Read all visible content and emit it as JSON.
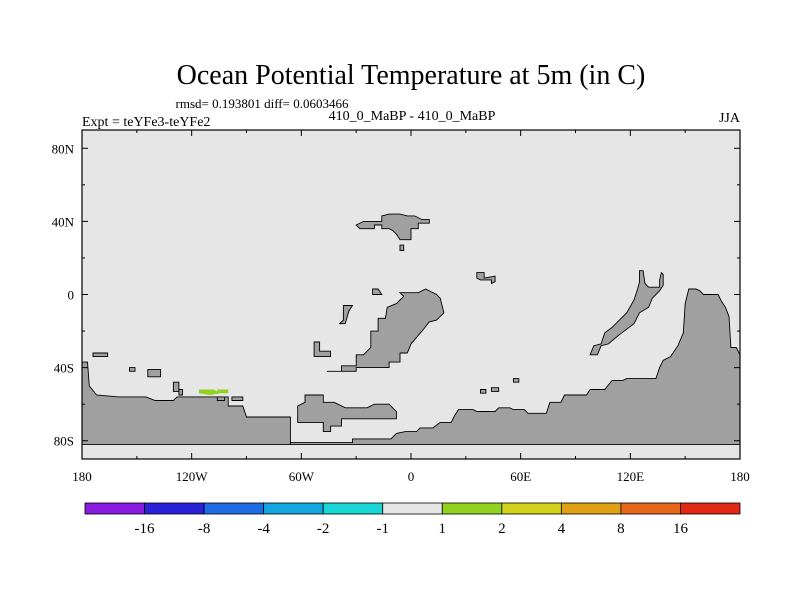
{
  "title": "Ocean Potential Temperature at 5m (in C)",
  "stats": "rmsd= 0.193801 diff= 0.0603466",
  "experiment": "Expt = teYFe3-teYFe2",
  "case": "410_0_MaBP - 410_0_MaBP",
  "season": "JJA",
  "colors": {
    "land": "#a0a0a0",
    "ocean_neutral": "#e6e6e6",
    "anomaly_patch": "#8fd21f"
  },
  "map": {
    "lon_range": [
      -180,
      180
    ],
    "lat_range": [
      -90,
      90
    ],
    "x_ticks": [
      {
        "lon": -180,
        "label": "180"
      },
      {
        "lon": -120,
        "label": "120W"
      },
      {
        "lon": -60,
        "label": "60W"
      },
      {
        "lon": 0,
        "label": "0"
      },
      {
        "lon": 60,
        "label": "60E"
      },
      {
        "lon": 120,
        "label": "120E"
      },
      {
        "lon": 180,
        "label": "180"
      }
    ],
    "y_ticks": [
      {
        "lat": 80,
        "label": "80N"
      },
      {
        "lat": 40,
        "label": "40N"
      },
      {
        "lat": 0,
        "label": "0"
      },
      {
        "lat": -40,
        "label": "40S"
      },
      {
        "lat": -80,
        "label": "80S"
      }
    ],
    "land_polygons": [
      [
        [
          -180,
          -37
        ],
        [
          -177,
          -37
        ],
        [
          -176,
          -50
        ],
        [
          -172,
          -55
        ],
        [
          -160,
          -56
        ],
        [
          -145,
          -56
        ],
        [
          -140,
          -58
        ],
        [
          -130,
          -58
        ],
        [
          -128,
          -56
        ],
        [
          -100,
          -56
        ],
        [
          -100,
          -61
        ],
        [
          -92,
          -61
        ],
        [
          -90,
          -67
        ],
        [
          -66,
          -67
        ],
        [
          -66,
          -82
        ],
        [
          -180,
          -82
        ]
      ],
      [
        [
          -66,
          -82
        ],
        [
          -66,
          -81
        ],
        [
          -32,
          -81
        ],
        [
          -32,
          -79
        ],
        [
          -11,
          -79
        ],
        [
          -8,
          -76
        ],
        [
          -3,
          -75
        ],
        [
          3,
          -75
        ],
        [
          5,
          -73
        ],
        [
          12,
          -73
        ],
        [
          16,
          -70
        ],
        [
          22,
          -70
        ],
        [
          24,
          -66
        ],
        [
          26,
          -63
        ],
        [
          34,
          -63
        ],
        [
          36,
          -64
        ],
        [
          46,
          -64
        ],
        [
          48,
          -62
        ],
        [
          54,
          -62
        ],
        [
          56,
          -63
        ],
        [
          62,
          -63
        ],
        [
          64,
          -65
        ],
        [
          74,
          -65
        ],
        [
          76,
          -59
        ],
        [
          82,
          -59
        ],
        [
          84,
          -55
        ],
        [
          96,
          -55
        ],
        [
          98,
          -52
        ],
        [
          106,
          -52
        ],
        [
          110,
          -47
        ],
        [
          116,
          -47
        ],
        [
          118,
          -46
        ],
        [
          134,
          -46
        ],
        [
          136,
          -40
        ],
        [
          138,
          -36
        ],
        [
          142,
          -34
        ],
        [
          146,
          -28
        ],
        [
          149,
          -21
        ],
        [
          150,
          -5
        ],
        [
          152,
          3
        ],
        [
          156,
          3
        ],
        [
          158,
          2
        ],
        [
          160,
          0
        ],
        [
          168,
          0
        ],
        [
          170,
          -4
        ],
        [
          172,
          -7
        ],
        [
          174,
          -12
        ],
        [
          175,
          -29
        ],
        [
          178,
          -29
        ],
        [
          180,
          -33
        ],
        [
          180,
          -82
        ]
      ],
      [
        [
          -46,
          -42
        ],
        [
          -38,
          -42
        ],
        [
          -38,
          -39
        ],
        [
          -30,
          -39
        ],
        [
          -30,
          -33
        ],
        [
          -26,
          -33
        ],
        [
          -22,
          -29
        ],
        [
          -22,
          -20
        ],
        [
          -18,
          -20
        ],
        [
          -18,
          -13
        ],
        [
          -14,
          -13
        ],
        [
          -13,
          -7
        ],
        [
          -8,
          -5
        ],
        [
          -6,
          -3
        ],
        [
          -4,
          -1
        ],
        [
          -6,
          1
        ],
        [
          4,
          1
        ],
        [
          8,
          3
        ],
        [
          14,
          0
        ],
        [
          16,
          -2
        ],
        [
          18,
          -10
        ],
        [
          14,
          -14
        ],
        [
          10,
          -15
        ],
        [
          6,
          -20
        ],
        [
          0,
          -27
        ],
        [
          -2,
          -32
        ],
        [
          -6,
          -32
        ],
        [
          -6,
          -37
        ],
        [
          -12,
          -37
        ],
        [
          -12,
          -40
        ],
        [
          -30,
          -40
        ],
        [
          -30,
          -42
        ],
        [
          -46,
          -42
        ]
      ],
      [
        [
          -21,
          0
        ],
        [
          -21,
          3
        ],
        [
          -18,
          3
        ],
        [
          -16,
          0
        ]
      ],
      [
        [
          -39,
          -16
        ],
        [
          -36,
          -16
        ],
        [
          -34,
          -9
        ],
        [
          -32,
          -6
        ],
        [
          -37,
          -6
        ],
        [
          -37,
          -14
        ]
      ],
      [
        [
          -53,
          -26
        ],
        [
          -50,
          -26
        ],
        [
          -50,
          -31
        ],
        [
          -44,
          -31
        ],
        [
          -44,
          -34
        ],
        [
          -53,
          -34
        ]
      ],
      [
        [
          -58,
          -55
        ],
        [
          -48,
          -55
        ],
        [
          -48,
          -59
        ],
        [
          -42,
          -59
        ],
        [
          -36,
          -62
        ],
        [
          -24,
          -62
        ],
        [
          -20,
          -60
        ],
        [
          -12,
          -60
        ],
        [
          -8,
          -64
        ],
        [
          -8,
          -68
        ],
        [
          -38,
          -68
        ],
        [
          -38,
          -72
        ],
        [
          -44,
          -72
        ],
        [
          -44,
          -75
        ],
        [
          -48,
          -75
        ],
        [
          -48,
          -70
        ],
        [
          -62,
          -70
        ],
        [
          -62,
          -61
        ],
        [
          -58,
          -59
        ]
      ],
      [
        [
          -16,
          43
        ],
        [
          -12,
          44
        ],
        [
          -6,
          44
        ],
        [
          -2,
          43
        ],
        [
          2,
          43
        ],
        [
          6,
          41
        ],
        [
          10,
          41
        ],
        [
          10,
          39
        ],
        [
          4,
          39
        ],
        [
          4,
          36
        ],
        [
          0,
          36
        ],
        [
          0,
          30
        ],
        [
          -6,
          30
        ],
        [
          -8,
          33
        ],
        [
          -10,
          35
        ],
        [
          -12,
          36
        ],
        [
          -16,
          36
        ],
        [
          -16,
          38
        ],
        [
          -20,
          38
        ],
        [
          -20,
          36
        ],
        [
          -28,
          36
        ],
        [
          -30,
          38
        ],
        [
          -26,
          40
        ],
        [
          -16,
          40
        ]
      ],
      [
        [
          -6,
          27
        ],
        [
          -4,
          27
        ],
        [
          -4,
          24
        ],
        [
          -6,
          24
        ]
      ],
      [
        [
          36,
          12
        ],
        [
          40,
          12
        ],
        [
          40,
          9
        ],
        [
          46,
          10
        ],
        [
          46,
          7
        ],
        [
          44,
          6
        ],
        [
          44,
          8
        ],
        [
          38,
          8
        ],
        [
          36,
          9
        ]
      ],
      [
        [
          125,
          13
        ],
        [
          127,
          13
        ],
        [
          128,
          6
        ],
        [
          130,
          4
        ],
        [
          136,
          4
        ],
        [
          136,
          8
        ],
        [
          137,
          12
        ],
        [
          138,
          11
        ],
        [
          138,
          5
        ],
        [
          136,
          2
        ],
        [
          134,
          0
        ],
        [
          132,
          -2
        ],
        [
          130,
          -7
        ],
        [
          125,
          -10
        ],
        [
          122,
          -16
        ],
        [
          118,
          -19
        ],
        [
          114,
          -22
        ],
        [
          108,
          -27
        ],
        [
          104,
          -28
        ],
        [
          102,
          -33
        ],
        [
          98,
          -33
        ],
        [
          100,
          -28
        ],
        [
          104,
          -27
        ],
        [
          106,
          -21
        ],
        [
          110,
          -18
        ],
        [
          114,
          -14
        ],
        [
          118,
          -10
        ],
        [
          122,
          -3
        ],
        [
          124,
          3
        ],
        [
          125,
          7
        ]
      ],
      [
        [
          44,
          -51
        ],
        [
          48,
          -51
        ],
        [
          48,
          -53
        ],
        [
          44,
          -53
        ]
      ],
      [
        [
          38,
          -52
        ],
        [
          41,
          -52
        ],
        [
          41,
          -54
        ],
        [
          38,
          -54
        ]
      ],
      [
        [
          56,
          -48
        ],
        [
          59,
          -48
        ],
        [
          59,
          -46
        ],
        [
          56,
          -46
        ]
      ],
      [
        [
          -174,
          -32
        ],
        [
          -166,
          -32
        ],
        [
          -166,
          -34
        ],
        [
          -174,
          -34
        ]
      ],
      [
        [
          -154,
          -40
        ],
        [
          -151,
          -40
        ],
        [
          -151,
          -42
        ],
        [
          -154,
          -42
        ]
      ],
      [
        [
          -144,
          -41
        ],
        [
          -137,
          -41
        ],
        [
          -137,
          -45
        ],
        [
          -144,
          -45
        ]
      ],
      [
        [
          -130,
          -48
        ],
        [
          -127,
          -48
        ],
        [
          -127,
          -53
        ],
        [
          -130,
          -53
        ]
      ],
      [
        [
          -127,
          -52
        ],
        [
          -125,
          -52
        ],
        [
          -125,
          -55
        ],
        [
          -127,
          -55
        ]
      ],
      [
        [
          -106,
          -56
        ],
        [
          -102,
          -56
        ],
        [
          -102,
          -58
        ],
        [
          -106,
          -58
        ]
      ],
      [
        [
          -98,
          -56
        ],
        [
          -92,
          -56
        ],
        [
          -92,
          -58
        ],
        [
          -98,
          -58
        ]
      ]
    ],
    "anomaly_patches": [
      {
        "category": "1 to 2",
        "points": [
          [
            -116,
            -52
          ],
          [
            -108,
            -52
          ],
          [
            -104,
            -54
          ],
          [
            -110,
            -55
          ],
          [
            -116,
            -54
          ]
        ]
      },
      {
        "category": "1 to 2",
        "points": [
          [
            -106,
            -52
          ],
          [
            -100,
            -52
          ],
          [
            -100,
            -54
          ],
          [
            -106,
            -54
          ]
        ]
      }
    ]
  },
  "colorbar": {
    "colors": [
      "#8a1ce0",
      "#2a22d8",
      "#1e6ce6",
      "#14a6e0",
      "#18d6d6",
      "#e6e6e6",
      "#8fd21f",
      "#d2d21c",
      "#dfa014",
      "#e8661a",
      "#e02814"
    ],
    "labels": [
      "-16",
      "-8",
      "-4",
      "-2",
      "-1",
      "1",
      "2",
      "4",
      "8",
      "16"
    ]
  }
}
